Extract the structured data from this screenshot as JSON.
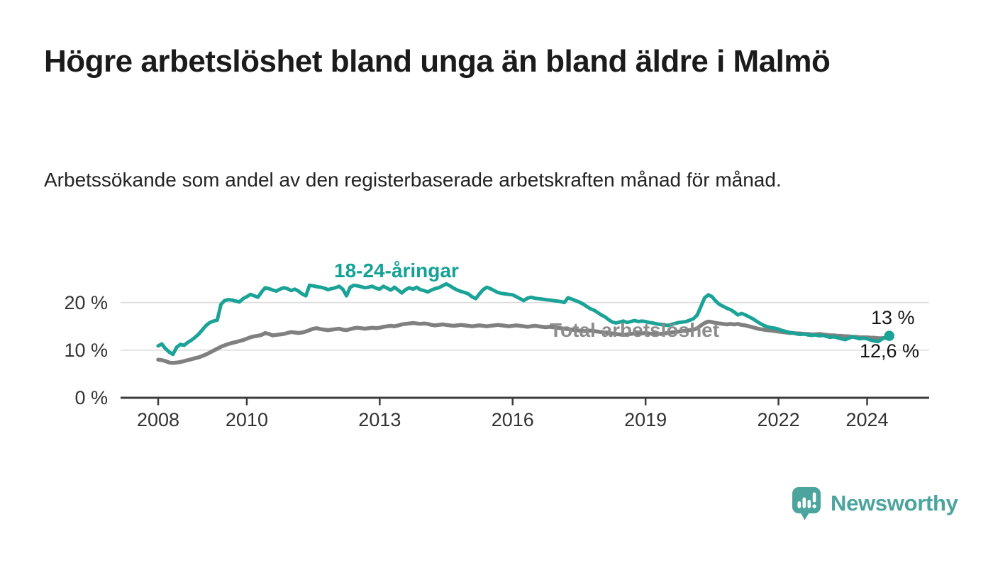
{
  "header": {
    "title": "Högre arbetslöshet bland unga än bland äldre i Malmö",
    "subtitle": "Arbetssökande som andel av den registerbaserade arbetskraften månad för månad."
  },
  "chart_data": {
    "type": "line",
    "title": "Högre arbetslöshet bland unga än bland äldre i Malmö",
    "subtitle": "Arbetssökande som andel av den registerbaserade arbetskraften månad för månad.",
    "unit": "%",
    "frequency": "monthly",
    "x_start_month": "2008-01",
    "x_end_month": "2024-07",
    "grid": "horizontal",
    "grid_color": "#d9d9d9",
    "axis_color": "#3c3c3c",
    "ylim": [
      0,
      26
    ],
    "y_ticks": [
      {
        "value": 0,
        "label": "0 %"
      },
      {
        "value": 10,
        "label": "10 %"
      },
      {
        "value": 20,
        "label": "20 %"
      }
    ],
    "x_ticks": [
      {
        "year": 2008,
        "label": "2008"
      },
      {
        "year": 2010,
        "label": "2010"
      },
      {
        "year": 2013,
        "label": "2013"
      },
      {
        "year": 2016,
        "label": "2016"
      },
      {
        "year": 2019,
        "label": "2019"
      },
      {
        "year": 2022,
        "label": "2022"
      },
      {
        "year": 2024,
        "label": "2024"
      }
    ],
    "series": [
      {
        "name": "18-24-åringar",
        "color": "#1aa396",
        "label_color": "#14a296",
        "width": 5,
        "end_dot": true,
        "end_label": "13 %",
        "values": [
          10.9,
          11.3,
          10.3,
          9.6,
          9.1,
          10.6,
          11.2,
          11.0,
          11.6,
          12.1,
          12.7,
          13.4,
          14.3,
          15.2,
          15.8,
          16.1,
          16.3,
          19.6,
          20.4,
          20.6,
          20.5,
          20.3,
          20.1,
          20.8,
          21.2,
          21.7,
          21.4,
          21.1,
          22.2,
          23.1,
          22.9,
          22.6,
          22.4,
          22.8,
          23.1,
          22.9,
          22.5,
          22.8,
          22.4,
          21.8,
          21.4,
          23.6,
          23.5,
          23.3,
          23.2,
          23.0,
          22.7,
          22.9,
          23.1,
          23.4,
          22.8,
          21.4,
          23.2,
          23.6,
          23.5,
          23.3,
          23.1,
          23.2,
          23.4,
          23.0,
          22.8,
          23.4,
          23.0,
          22.6,
          23.2,
          22.6,
          22.0,
          22.7,
          23.1,
          22.8,
          23.2,
          22.7,
          22.5,
          22.2,
          22.6,
          22.9,
          23.1,
          23.5,
          23.9,
          23.5,
          23.0,
          22.6,
          22.3,
          22.1,
          21.8,
          21.2,
          20.8,
          21.8,
          22.7,
          23.2,
          22.9,
          22.5,
          22.1,
          21.9,
          21.8,
          21.7,
          21.6,
          21.2,
          20.8,
          20.4,
          20.9,
          21.1,
          20.9,
          20.8,
          20.7,
          20.6,
          20.5,
          20.4,
          20.3,
          20.2,
          20.0,
          21.0,
          20.7,
          20.4,
          20.1,
          19.7,
          19.2,
          18.7,
          18.4,
          17.9,
          17.4,
          17.0,
          16.4,
          15.9,
          15.7,
          15.9,
          16.1,
          15.8,
          16.0,
          16.2,
          16.0,
          16.1,
          16.0,
          15.8,
          15.7,
          15.5,
          15.4,
          15.3,
          15.2,
          15.4,
          15.6,
          15.8,
          15.9,
          16.0,
          16.3,
          16.6,
          17.4,
          19.2,
          21.0,
          21.6,
          21.2,
          20.3,
          19.6,
          19.2,
          18.8,
          18.5,
          18.0,
          17.4,
          17.7,
          17.4,
          17.0,
          16.6,
          16.1,
          15.6,
          15.2,
          14.9,
          14.7,
          14.6,
          14.4,
          14.1,
          13.9,
          13.7,
          13.6,
          13.4,
          13.3,
          13.4,
          13.2,
          13.1,
          13.2,
          13.0,
          13.1,
          12.9,
          12.7,
          12.8,
          12.6,
          12.4,
          12.2,
          12.5,
          12.8,
          12.6,
          12.4,
          12.5,
          12.4,
          12.1,
          11.9,
          11.8,
          12.3,
          12.7,
          13.0
        ]
      },
      {
        "name": "Total arbetslöshet",
        "color": "#808080",
        "label_color": "#8c8c8c",
        "width": 5.5,
        "end_dot": false,
        "end_label": "12,6 %",
        "values": [
          8.0,
          7.9,
          7.7,
          7.4,
          7.3,
          7.4,
          7.5,
          7.7,
          7.9,
          8.1,
          8.3,
          8.5,
          8.8,
          9.1,
          9.5,
          9.9,
          10.3,
          10.7,
          11.0,
          11.3,
          11.5,
          11.7,
          11.9,
          12.1,
          12.4,
          12.7,
          12.9,
          13.0,
          13.2,
          13.6,
          13.4,
          13.1,
          13.2,
          13.3,
          13.4,
          13.6,
          13.8,
          13.7,
          13.6,
          13.7,
          13.9,
          14.2,
          14.5,
          14.6,
          14.4,
          14.3,
          14.2,
          14.3,
          14.4,
          14.5,
          14.3,
          14.2,
          14.4,
          14.6,
          14.7,
          14.6,
          14.5,
          14.6,
          14.7,
          14.6,
          14.7,
          14.9,
          15.0,
          15.1,
          15.0,
          15.2,
          15.4,
          15.5,
          15.6,
          15.7,
          15.6,
          15.5,
          15.6,
          15.5,
          15.3,
          15.2,
          15.3,
          15.4,
          15.3,
          15.2,
          15.1,
          15.2,
          15.3,
          15.2,
          15.1,
          15.0,
          15.1,
          15.2,
          15.1,
          15.0,
          15.1,
          15.2,
          15.3,
          15.2,
          15.1,
          15.0,
          15.1,
          15.2,
          15.1,
          15.0,
          14.9,
          15.0,
          15.1,
          15.0,
          14.9,
          14.8,
          14.9,
          14.8,
          14.7,
          14.6,
          14.5,
          14.4,
          14.3,
          14.2,
          14.1,
          14.0,
          14.0,
          14.1,
          14.0,
          13.9,
          13.8,
          13.7,
          13.6,
          13.5,
          13.4,
          13.3,
          13.2,
          13.3,
          13.4,
          13.5,
          13.4,
          13.5,
          13.6,
          13.5,
          13.4,
          13.5,
          13.4,
          13.5,
          13.6,
          13.7,
          13.8,
          13.9,
          14.0,
          14.1,
          14.2,
          14.3,
          14.6,
          15.2,
          15.7,
          16.0,
          15.9,
          15.7,
          15.6,
          15.5,
          15.4,
          15.5,
          15.4,
          15.5,
          15.3,
          15.2,
          15.0,
          14.8,
          14.6,
          14.4,
          14.3,
          14.2,
          14.1,
          14.0,
          13.9,
          13.8,
          13.7,
          13.6,
          13.6,
          13.5,
          13.5,
          13.4,
          13.4,
          13.3,
          13.3,
          13.4,
          13.3,
          13.2,
          13.1,
          13.1,
          13.0,
          13.0,
          12.9,
          12.9,
          12.8,
          12.8,
          12.7,
          12.7,
          12.7,
          12.6,
          12.6,
          12.5,
          12.5,
          12.6,
          12.6
        ]
      }
    ]
  },
  "branding": {
    "logo_text": "Newsworthy",
    "logo_color": "#4BA49D",
    "icon": "bar-chart-speech-bubble"
  }
}
